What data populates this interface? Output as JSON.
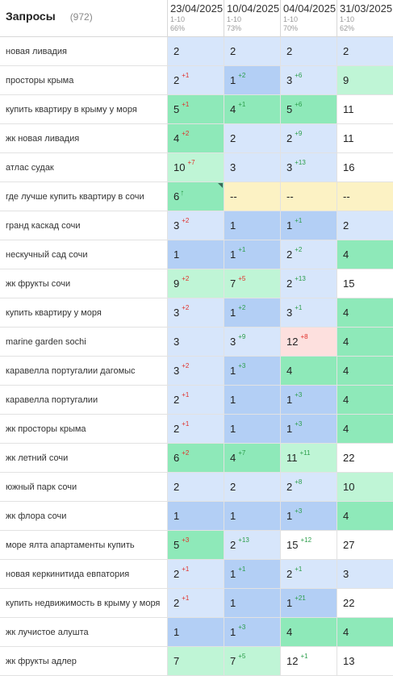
{
  "header": {
    "title": "Запросы",
    "count": "(972)",
    "dates": [
      {
        "date": "23/04/2025",
        "range": "1-10",
        "percent": "66%"
      },
      {
        "date": "10/04/2025",
        "range": "1-10",
        "percent": "73%"
      },
      {
        "date": "04/04/2025",
        "range": "1-10",
        "percent": "70%"
      },
      {
        "date": "31/03/2025",
        "range": "1-10",
        "percent": "62%"
      }
    ]
  },
  "rows": [
    {
      "query": "новая ливадия",
      "cells": [
        {
          "v": "2",
          "c": "blue"
        },
        {
          "v": "2",
          "c": "blue"
        },
        {
          "v": "2",
          "c": "blue"
        },
        {
          "v": "2",
          "c": "blue"
        }
      ]
    },
    {
      "query": "просторы крыма",
      "cells": [
        {
          "v": "2",
          "d": "+1",
          "t": "down",
          "c": "blue"
        },
        {
          "v": "1",
          "d": "+2",
          "t": "up",
          "c": "dblue"
        },
        {
          "v": "3",
          "d": "+6",
          "t": "up",
          "c": "blue"
        },
        {
          "v": "9",
          "c": "lgreen"
        }
      ]
    },
    {
      "query": "купить квартиру в крыму у моря",
      "cells": [
        {
          "v": "5",
          "d": "+1",
          "t": "down",
          "c": "green"
        },
        {
          "v": "4",
          "d": "+1",
          "t": "up",
          "c": "green"
        },
        {
          "v": "5",
          "d": "+6",
          "t": "up",
          "c": "green"
        },
        {
          "v": "11",
          "c": "white"
        }
      ]
    },
    {
      "query": "жк новая ливадия",
      "cells": [
        {
          "v": "4",
          "d": "+2",
          "t": "down",
          "c": "green"
        },
        {
          "v": "2",
          "c": "blue"
        },
        {
          "v": "2",
          "d": "+9",
          "t": "up",
          "c": "blue"
        },
        {
          "v": "11",
          "c": "white"
        }
      ]
    },
    {
      "query": "атлас судак",
      "cells": [
        {
          "v": "10",
          "d": "+7",
          "t": "down",
          "c": "lgreen"
        },
        {
          "v": "3",
          "c": "blue"
        },
        {
          "v": "3",
          "d": "+13",
          "t": "up",
          "c": "blue"
        },
        {
          "v": "16",
          "c": "white"
        }
      ]
    },
    {
      "query": "где лучше купить квартиру в сочи",
      "cells": [
        {
          "v": "6",
          "d": "↑",
          "t": "new",
          "c": "green",
          "tri": true
        },
        {
          "v": "--",
          "c": "yellow"
        },
        {
          "v": "--",
          "c": "yellow"
        },
        {
          "v": "--",
          "c": "yellow"
        }
      ]
    },
    {
      "query": "гранд каскад сочи",
      "cells": [
        {
          "v": "3",
          "d": "+2",
          "t": "down",
          "c": "blue"
        },
        {
          "v": "1",
          "c": "dblue"
        },
        {
          "v": "1",
          "d": "+1",
          "t": "up",
          "c": "dblue"
        },
        {
          "v": "2",
          "c": "blue"
        }
      ]
    },
    {
      "query": "нескучный сад сочи",
      "cells": [
        {
          "v": "1",
          "c": "dblue"
        },
        {
          "v": "1",
          "d": "+1",
          "t": "up",
          "c": "dblue"
        },
        {
          "v": "2",
          "d": "+2",
          "t": "up",
          "c": "blue"
        },
        {
          "v": "4",
          "c": "green"
        }
      ]
    },
    {
      "query": "жк фрукты сочи",
      "cells": [
        {
          "v": "9",
          "d": "+2",
          "t": "down",
          "c": "lgreen"
        },
        {
          "v": "7",
          "d": "+5",
          "t": "down",
          "c": "lgreen"
        },
        {
          "v": "2",
          "d": "+13",
          "t": "up",
          "c": "blue"
        },
        {
          "v": "15",
          "c": "white"
        }
      ]
    },
    {
      "query": "купить квартиру у моря",
      "cells": [
        {
          "v": "3",
          "d": "+2",
          "t": "down",
          "c": "blue"
        },
        {
          "v": "1",
          "d": "+2",
          "t": "up",
          "c": "dblue"
        },
        {
          "v": "3",
          "d": "+1",
          "t": "up",
          "c": "blue"
        },
        {
          "v": "4",
          "c": "green"
        }
      ]
    },
    {
      "query": "marine garden sochi",
      "cells": [
        {
          "v": "3",
          "c": "blue"
        },
        {
          "v": "3",
          "d": "+9",
          "t": "up",
          "c": "blue"
        },
        {
          "v": "12",
          "d": "+8",
          "t": "down",
          "c": "pink"
        },
        {
          "v": "4",
          "c": "green"
        }
      ]
    },
    {
      "query": "каравелла португалии дагомыс",
      "cells": [
        {
          "v": "3",
          "d": "+2",
          "t": "down",
          "c": "blue"
        },
        {
          "v": "1",
          "d": "+3",
          "t": "up",
          "c": "dblue"
        },
        {
          "v": "4",
          "c": "green"
        },
        {
          "v": "4",
          "c": "green"
        }
      ]
    },
    {
      "query": "каравелла португалии",
      "cells": [
        {
          "v": "2",
          "d": "+1",
          "t": "down",
          "c": "blue"
        },
        {
          "v": "1",
          "c": "dblue"
        },
        {
          "v": "1",
          "d": "+3",
          "t": "up",
          "c": "dblue"
        },
        {
          "v": "4",
          "c": "green"
        }
      ]
    },
    {
      "query": "жк просторы крыма",
      "cells": [
        {
          "v": "2",
          "d": "+1",
          "t": "down",
          "c": "blue"
        },
        {
          "v": "1",
          "c": "dblue"
        },
        {
          "v": "1",
          "d": "+3",
          "t": "up",
          "c": "dblue"
        },
        {
          "v": "4",
          "c": "green"
        }
      ]
    },
    {
      "query": "жк летний сочи",
      "cells": [
        {
          "v": "6",
          "d": "+2",
          "t": "down",
          "c": "green"
        },
        {
          "v": "4",
          "d": "+7",
          "t": "up",
          "c": "green"
        },
        {
          "v": "11",
          "d": "+11",
          "t": "up",
          "c": "lgreen"
        },
        {
          "v": "22",
          "c": "white"
        }
      ]
    },
    {
      "query": "южный парк сочи",
      "cells": [
        {
          "v": "2",
          "c": "blue"
        },
        {
          "v": "2",
          "c": "blue"
        },
        {
          "v": "2",
          "d": "+8",
          "t": "up",
          "c": "blue"
        },
        {
          "v": "10",
          "c": "lgreen"
        }
      ]
    },
    {
      "query": "жк флора сочи",
      "cells": [
        {
          "v": "1",
          "c": "dblue"
        },
        {
          "v": "1",
          "c": "dblue"
        },
        {
          "v": "1",
          "d": "+3",
          "t": "up",
          "c": "dblue"
        },
        {
          "v": "4",
          "c": "green"
        }
      ]
    },
    {
      "query": "море ялта апартаменты купить",
      "cells": [
        {
          "v": "5",
          "d": "+3",
          "t": "down",
          "c": "green"
        },
        {
          "v": "2",
          "d": "+13",
          "t": "up",
          "c": "blue"
        },
        {
          "v": "15",
          "d": "+12",
          "t": "up",
          "c": "white"
        },
        {
          "v": "27",
          "c": "white"
        }
      ]
    },
    {
      "query": "новая керкинитида евпатория",
      "cells": [
        {
          "v": "2",
          "d": "+1",
          "t": "down",
          "c": "blue"
        },
        {
          "v": "1",
          "d": "+1",
          "t": "up",
          "c": "dblue"
        },
        {
          "v": "2",
          "d": "+1",
          "t": "up",
          "c": "blue"
        },
        {
          "v": "3",
          "c": "blue"
        }
      ]
    },
    {
      "query": "купить недвижимость в крыму у моря",
      "cells": [
        {
          "v": "2",
          "d": "+1",
          "t": "down",
          "c": "blue"
        },
        {
          "v": "1",
          "c": "dblue"
        },
        {
          "v": "1",
          "d": "+21",
          "t": "up",
          "c": "dblue"
        },
        {
          "v": "22",
          "c": "white"
        }
      ]
    },
    {
      "query": "жк лучистое алушта",
      "cells": [
        {
          "v": "1",
          "c": "dblue"
        },
        {
          "v": "1",
          "d": "+3",
          "t": "up",
          "c": "dblue"
        },
        {
          "v": "4",
          "c": "green"
        },
        {
          "v": "4",
          "c": "green"
        }
      ]
    },
    {
      "query": "жк фрукты адлер",
      "cells": [
        {
          "v": "7",
          "c": "lgreen"
        },
        {
          "v": "7",
          "d": "+5",
          "t": "up",
          "c": "lgreen"
        },
        {
          "v": "12",
          "d": "+1",
          "t": "up",
          "c": "white"
        },
        {
          "v": "13",
          "c": "white"
        }
      ]
    }
  ]
}
